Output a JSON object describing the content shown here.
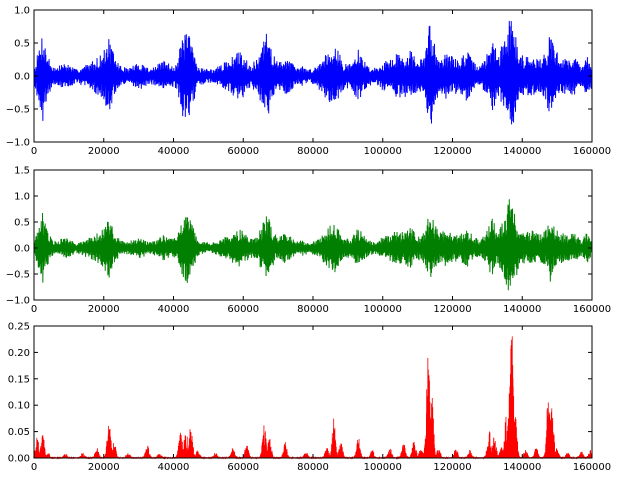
{
  "chart_data": [
    {
      "type": "line",
      "title": "",
      "xlabel": "",
      "ylabel": "",
      "xlim": [
        0,
        160000
      ],
      "ylim": [
        -1.0,
        1.0
      ],
      "xticks": [
        0,
        20000,
        40000,
        60000,
        80000,
        100000,
        120000,
        140000,
        160000
      ],
      "xtick_labels": [
        "0",
        "20000",
        "40000",
        "60000",
        "80000",
        "100000",
        "120000",
        "140000",
        "160000"
      ],
      "yticks": [
        -1.0,
        -0.5,
        0.0,
        0.5,
        1.0
      ],
      "ytick_labels": [
        "−1.0",
        "−0.5",
        "0.0",
        "0.5",
        "1.0"
      ],
      "series": [
        {
          "color": "#0000ff",
          "kind": "waveform",
          "envelope": [
            [
              0,
              0.1
            ],
            [
              1500,
              0.45
            ],
            [
              2500,
              0.7
            ],
            [
              3500,
              0.4
            ],
            [
              5000,
              0.18
            ],
            [
              6500,
              0.12
            ],
            [
              8000,
              0.2
            ],
            [
              10000,
              0.18
            ],
            [
              12000,
              0.1
            ],
            [
              14000,
              0.15
            ],
            [
              16500,
              0.22
            ],
            [
              18500,
              0.3
            ],
            [
              20000,
              0.38
            ],
            [
              21500,
              0.6
            ],
            [
              23000,
              0.3
            ],
            [
              25000,
              0.15
            ],
            [
              27000,
              0.12
            ],
            [
              29000,
              0.18
            ],
            [
              31000,
              0.2
            ],
            [
              33000,
              0.12
            ],
            [
              35000,
              0.15
            ],
            [
              37000,
              0.25
            ],
            [
              39000,
              0.18
            ],
            [
              41000,
              0.2
            ],
            [
              42500,
              0.6
            ],
            [
              44000,
              0.7
            ],
            [
              45500,
              0.45
            ],
            [
              47000,
              0.15
            ],
            [
              49000,
              0.12
            ],
            [
              51000,
              0.1
            ],
            [
              53000,
              0.15
            ],
            [
              55000,
              0.22
            ],
            [
              57000,
              0.3
            ],
            [
              59000,
              0.38
            ],
            [
              60500,
              0.3
            ],
            [
              62000,
              0.18
            ],
            [
              64000,
              0.25
            ],
            [
              66000,
              0.55
            ],
            [
              67000,
              0.7
            ],
            [
              68500,
              0.35
            ],
            [
              70000,
              0.2
            ],
            [
              72000,
              0.3
            ],
            [
              73500,
              0.25
            ],
            [
              75000,
              0.12
            ],
            [
              77000,
              0.15
            ],
            [
              79000,
              0.1
            ],
            [
              81000,
              0.15
            ],
            [
              83000,
              0.3
            ],
            [
              85000,
              0.45
            ],
            [
              86000,
              0.55
            ],
            [
              87500,
              0.35
            ],
            [
              89000,
              0.18
            ],
            [
              91000,
              0.2
            ],
            [
              93000,
              0.4
            ],
            [
              94500,
              0.25
            ],
            [
              96000,
              0.15
            ],
            [
              98000,
              0.12
            ],
            [
              100000,
              0.22
            ],
            [
              102000,
              0.25
            ],
            [
              104000,
              0.35
            ],
            [
              106000,
              0.3
            ],
            [
              108000,
              0.4
            ],
            [
              110000,
              0.22
            ],
            [
              112000,
              0.3
            ],
            [
              113500,
              0.85
            ],
            [
              114500,
              0.6
            ],
            [
              116000,
              0.3
            ],
            [
              118000,
              0.35
            ],
            [
              120000,
              0.3
            ],
            [
              122000,
              0.25
            ],
            [
              124000,
              0.4
            ],
            [
              126000,
              0.22
            ],
            [
              128000,
              0.15
            ],
            [
              130000,
              0.35
            ],
            [
              131500,
              0.6
            ],
            [
              133000,
              0.3
            ],
            [
              135000,
              0.6
            ],
            [
              136500,
              0.95
            ],
            [
              137500,
              0.85
            ],
            [
              139000,
              0.35
            ],
            [
              141000,
              0.3
            ],
            [
              143000,
              0.35
            ],
            [
              145000,
              0.25
            ],
            [
              147000,
              0.4
            ],
            [
              148000,
              0.7
            ],
            [
              149000,
              0.45
            ],
            [
              151000,
              0.3
            ],
            [
              153000,
              0.25
            ],
            [
              155000,
              0.3
            ],
            [
              157000,
              0.15
            ],
            [
              158500,
              0.3
            ],
            [
              160000,
              0.2
            ]
          ]
        }
      ]
    },
    {
      "type": "line",
      "title": "",
      "xlabel": "",
      "ylabel": "",
      "xlim": [
        0,
        160000
      ],
      "ylim": [
        -1.0,
        1.5
      ],
      "xticks": [
        0,
        20000,
        40000,
        60000,
        80000,
        100000,
        120000,
        140000,
        160000
      ],
      "xtick_labels": [
        "0",
        "20000",
        "40000",
        "60000",
        "80000",
        "100000",
        "120000",
        "140000",
        "160000"
      ],
      "yticks": [
        -1.0,
        -0.5,
        0.0,
        0.5,
        1.0,
        1.5
      ],
      "ytick_labels": [
        "−1.0",
        "−0.5",
        "0.0",
        "0.5",
        "1.0",
        "1.5"
      ],
      "series": [
        {
          "color": "#007f00",
          "kind": "waveform",
          "envelope": [
            [
              0,
              0.1
            ],
            [
              1500,
              0.45
            ],
            [
              2500,
              0.7
            ],
            [
              3500,
              0.4
            ],
            [
              5000,
              0.18
            ],
            [
              6500,
              0.12
            ],
            [
              8000,
              0.2
            ],
            [
              10000,
              0.18
            ],
            [
              12000,
              0.1
            ],
            [
              14000,
              0.15
            ],
            [
              16500,
              0.22
            ],
            [
              18500,
              0.3
            ],
            [
              20000,
              0.38
            ],
            [
              21500,
              0.6
            ],
            [
              23000,
              0.3
            ],
            [
              25000,
              0.15
            ],
            [
              27000,
              0.12
            ],
            [
              29000,
              0.18
            ],
            [
              31000,
              0.2
            ],
            [
              33000,
              0.12
            ],
            [
              35000,
              0.15
            ],
            [
              37000,
              0.25
            ],
            [
              39000,
              0.18
            ],
            [
              41000,
              0.2
            ],
            [
              42500,
              0.6
            ],
            [
              44000,
              0.7
            ],
            [
              45500,
              0.45
            ],
            [
              47000,
              0.15
            ],
            [
              49000,
              0.12
            ],
            [
              51000,
              0.1
            ],
            [
              53000,
              0.15
            ],
            [
              55000,
              0.22
            ],
            [
              57000,
              0.3
            ],
            [
              59000,
              0.38
            ],
            [
              60500,
              0.3
            ],
            [
              62000,
              0.18
            ],
            [
              64000,
              0.25
            ],
            [
              66000,
              0.55
            ],
            [
              67000,
              0.7
            ],
            [
              68500,
              0.35
            ],
            [
              70000,
              0.2
            ],
            [
              72000,
              0.3
            ],
            [
              73500,
              0.25
            ],
            [
              75000,
              0.12
            ],
            [
              77000,
              0.15
            ],
            [
              79000,
              0.1
            ],
            [
              81000,
              0.15
            ],
            [
              83000,
              0.3
            ],
            [
              85000,
              0.45
            ],
            [
              86000,
              0.55
            ],
            [
              87500,
              0.35
            ],
            [
              89000,
              0.18
            ],
            [
              91000,
              0.2
            ],
            [
              93000,
              0.4
            ],
            [
              94500,
              0.25
            ],
            [
              96000,
              0.15
            ],
            [
              98000,
              0.12
            ],
            [
              100000,
              0.22
            ],
            [
              102000,
              0.25
            ],
            [
              104000,
              0.35
            ],
            [
              106000,
              0.3
            ],
            [
              108000,
              0.4
            ],
            [
              110000,
              0.22
            ],
            [
              112000,
              0.3
            ],
            [
              113500,
              0.8
            ],
            [
              114500,
              0.55
            ],
            [
              116000,
              0.3
            ],
            [
              118000,
              0.35
            ],
            [
              120000,
              0.3
            ],
            [
              122000,
              0.25
            ],
            [
              124000,
              0.4
            ],
            [
              126000,
              0.22
            ],
            [
              128000,
              0.15
            ],
            [
              130000,
              0.35
            ],
            [
              131500,
              0.6
            ],
            [
              133000,
              0.3
            ],
            [
              135000,
              0.6
            ],
            [
              136500,
              1.0
            ],
            [
              137500,
              0.85
            ],
            [
              139000,
              0.35
            ],
            [
              141000,
              0.3
            ],
            [
              143000,
              0.35
            ],
            [
              145000,
              0.25
            ],
            [
              147000,
              0.4
            ],
            [
              148000,
              0.7
            ],
            [
              149000,
              0.45
            ],
            [
              151000,
              0.3
            ],
            [
              153000,
              0.25
            ],
            [
              155000,
              0.3
            ],
            [
              157000,
              0.15
            ],
            [
              158500,
              0.3
            ],
            [
              160000,
              0.2
            ]
          ]
        }
      ]
    },
    {
      "type": "area",
      "title": "",
      "xlabel": "",
      "ylabel": "",
      "xlim": [
        0,
        160000
      ],
      "ylim": [
        0.0,
        0.25
      ],
      "xticks": [
        0,
        20000,
        40000,
        60000,
        80000,
        100000,
        120000,
        140000,
        160000
      ],
      "xtick_labels": [
        "0",
        "20000",
        "40000",
        "60000",
        "80000",
        "100000",
        "120000",
        "140000",
        "160000"
      ],
      "yticks": [
        0.0,
        0.05,
        0.1,
        0.15,
        0.2,
        0.25
      ],
      "ytick_labels": [
        "0.00",
        "0.05",
        "0.10",
        "0.15",
        "0.20",
        "0.25"
      ],
      "series": [
        {
          "color": "#ff0000",
          "kind": "filled-peaks",
          "peaks": [
            [
              1000,
              0.045
            ],
            [
              2500,
              0.045
            ],
            [
              4000,
              0.01
            ],
            [
              9000,
              0.008
            ],
            [
              14000,
              0.01
            ],
            [
              18000,
              0.02
            ],
            [
              21500,
              0.075
            ],
            [
              23000,
              0.03
            ],
            [
              27000,
              0.01
            ],
            [
              32500,
              0.025
            ],
            [
              36000,
              0.01
            ],
            [
              42000,
              0.055
            ],
            [
              43500,
              0.06
            ],
            [
              45000,
              0.065
            ],
            [
              47000,
              0.015
            ],
            [
              52000,
              0.01
            ],
            [
              57000,
              0.02
            ],
            [
              61000,
              0.025
            ],
            [
              66000,
              0.065
            ],
            [
              67500,
              0.04
            ],
            [
              72000,
              0.03
            ],
            [
              78000,
              0.012
            ],
            [
              84000,
              0.02
            ],
            [
              86000,
              0.075
            ],
            [
              88000,
              0.03
            ],
            [
              93000,
              0.04
            ],
            [
              97000,
              0.015
            ],
            [
              102000,
              0.02
            ],
            [
              106000,
              0.03
            ],
            [
              109000,
              0.035
            ],
            [
              111000,
              0.02
            ],
            [
              113000,
              0.205
            ],
            [
              114000,
              0.14
            ],
            [
              116000,
              0.02
            ],
            [
              121000,
              0.02
            ],
            [
              125000,
              0.015
            ],
            [
              130500,
              0.055
            ],
            [
              132000,
              0.045
            ],
            [
              134000,
              0.025
            ],
            [
              135500,
              0.09
            ],
            [
              136500,
              0.16
            ],
            [
              137000,
              0.24
            ],
            [
              138000,
              0.08
            ],
            [
              141000,
              0.015
            ],
            [
              144000,
              0.02
            ],
            [
              147500,
              0.12
            ],
            [
              148500,
              0.1
            ],
            [
              150000,
              0.02
            ],
            [
              153000,
              0.01
            ],
            [
              157000,
              0.012
            ],
            [
              159500,
              0.015
            ]
          ]
        }
      ]
    }
  ]
}
